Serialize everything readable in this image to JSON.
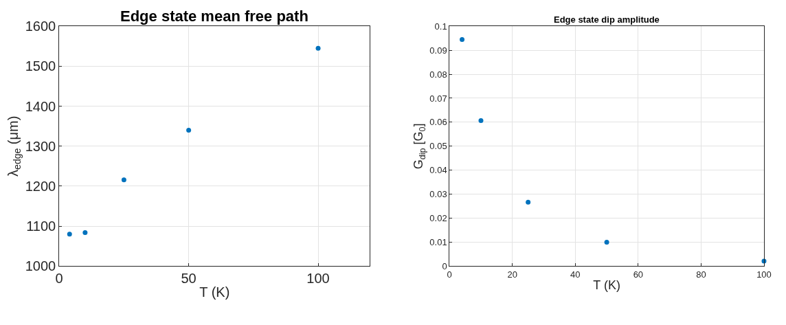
{
  "chart_data": [
    {
      "type": "scatter",
      "title": "Edge state mean free path",
      "xlabel": "T (K)",
      "ylabel": "λ$_{edge}$ (μm)",
      "x": [
        4,
        10,
        25,
        50,
        100
      ],
      "series": [
        {
          "color": "#0072bd",
          "values": [
            1080,
            1084,
            1216,
            1340,
            1545
          ]
        }
      ],
      "xlim": [
        0,
        120
      ],
      "xticks": [
        0,
        50,
        100
      ],
      "ylim": [
        1000,
        1600
      ],
      "yticks": [
        1000,
        1100,
        1200,
        1300,
        1400,
        1500,
        1600
      ],
      "grid": true,
      "marker": "circle"
    },
    {
      "type": "scatter",
      "title": "Edge state dip amplitude",
      "xlabel": "T (K)",
      "ylabel": "G$_{dip}$ [G$_{0}$]",
      "x": [
        4,
        10,
        25,
        50,
        100
      ],
      "series": [
        {
          "color": "#0072bd",
          "values": [
            0.0945,
            0.0607,
            0.0267,
            0.01,
            0.0021
          ]
        }
      ],
      "xlim": [
        0,
        100
      ],
      "xticks": [
        0,
        20,
        40,
        60,
        80,
        100
      ],
      "ylim": [
        0,
        0.1
      ],
      "yticks": [
        0,
        0.01,
        0.02,
        0.03,
        0.04,
        0.05,
        0.06,
        0.07,
        0.08,
        0.09,
        0.1
      ],
      "grid": true,
      "marker": "circle"
    }
  ]
}
